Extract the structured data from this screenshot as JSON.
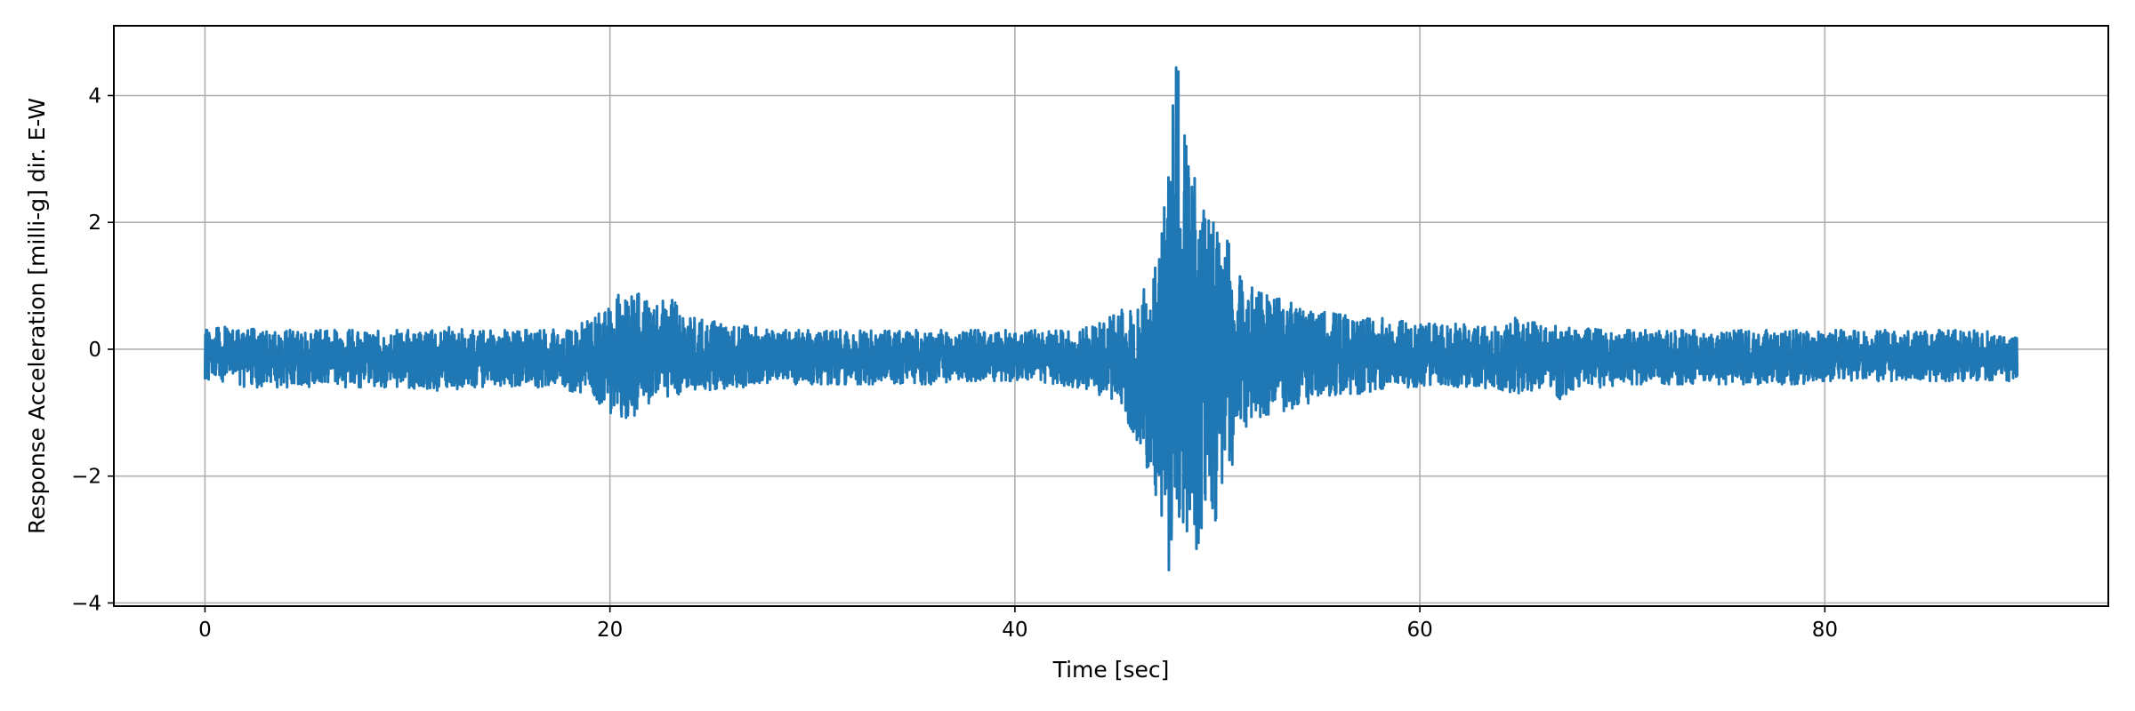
{
  "chart_data": {
    "type": "line",
    "title": "",
    "xlabel": "Time [sec]",
    "ylabel": "Response Acceleration [milli-g] dir. E-W",
    "xlim": [
      -4.5,
      94.0
    ],
    "ylim": [
      -4.05,
      5.1
    ],
    "xticks": [
      0,
      20,
      40,
      60,
      80
    ],
    "yticks": [
      -4,
      -2,
      0,
      2,
      4
    ],
    "xtick_labels": [
      "0",
      "20",
      "40",
      "60",
      "80"
    ],
    "ytick_labels": [
      "−4",
      "−2",
      "0",
      "2",
      "4"
    ],
    "grid": true,
    "legend": "none",
    "series_color": "#1f77b4",
    "series": [
      {
        "x": [
          0,
          1,
          2,
          3,
          4,
          5,
          6,
          7,
          8,
          9,
          10,
          11,
          12,
          13,
          14,
          15,
          16,
          17,
          18,
          19,
          20,
          21,
          22,
          23,
          24,
          25,
          26,
          27,
          28,
          29,
          30,
          31,
          32,
          33,
          34,
          35,
          36,
          37,
          38,
          39,
          40,
          41,
          42,
          43,
          44,
          45,
          46,
          47,
          47.5,
          48,
          48.3,
          48.6,
          49,
          49.5,
          50,
          50.5,
          51,
          51.5,
          52,
          53,
          54,
          55,
          56,
          57,
          58,
          59,
          60,
          61,
          62,
          63,
          64,
          65,
          66,
          67,
          68,
          69,
          70,
          71,
          72,
          73,
          74,
          75,
          76,
          77,
          78,
          79,
          80,
          81,
          82,
          83,
          84,
          85,
          86,
          87,
          88,
          89,
          89.5
        ],
        "upper": [
          0.3,
          0.35,
          0.3,
          0.35,
          0.3,
          0.3,
          0.3,
          0.3,
          0.3,
          0.3,
          0.3,
          0.35,
          0.35,
          0.3,
          0.3,
          0.3,
          0.3,
          0.3,
          0.35,
          0.45,
          0.75,
          1.0,
          0.7,
          0.8,
          0.5,
          0.45,
          0.4,
          0.35,
          0.3,
          0.3,
          0.3,
          0.3,
          0.3,
          0.3,
          0.3,
          0.3,
          0.3,
          0.3,
          0.3,
          0.3,
          0.3,
          0.3,
          0.3,
          0.3,
          0.4,
          0.55,
          0.8,
          1.4,
          2.6,
          4.65,
          3.5,
          3.0,
          2.7,
          2.2,
          2.05,
          1.7,
          1.4,
          1.1,
          0.9,
          0.8,
          0.7,
          0.6,
          0.55,
          0.5,
          0.5,
          0.45,
          0.4,
          0.4,
          0.4,
          0.35,
          0.35,
          0.55,
          0.4,
          0.35,
          0.35,
          0.3,
          0.3,
          0.3,
          0.3,
          0.3,
          0.3,
          0.3,
          0.3,
          0.3,
          0.3,
          0.3,
          0.3,
          0.3,
          0.3,
          0.3,
          0.3,
          0.3,
          0.3,
          0.3,
          0.3,
          0.25,
          0.25
        ],
        "lower": [
          -0.5,
          -0.55,
          -0.6,
          -0.6,
          -0.6,
          -0.6,
          -0.55,
          -0.6,
          -0.6,
          -0.6,
          -0.6,
          -0.65,
          -0.65,
          -0.6,
          -0.6,
          -0.6,
          -0.6,
          -0.6,
          -0.65,
          -0.75,
          -1.0,
          -1.1,
          -0.9,
          -0.8,
          -0.7,
          -0.65,
          -0.6,
          -0.6,
          -0.55,
          -0.55,
          -0.55,
          -0.55,
          -0.55,
          -0.55,
          -0.55,
          -0.55,
          -0.55,
          -0.5,
          -0.5,
          -0.5,
          -0.5,
          -0.5,
          -0.55,
          -0.6,
          -0.7,
          -0.8,
          -1.4,
          -2.6,
          -3.6,
          -3.65,
          -3.0,
          -2.8,
          -3.2,
          -2.5,
          -2.9,
          -2.1,
          -1.7,
          -1.3,
          -1.1,
          -1.0,
          -0.9,
          -0.8,
          -0.7,
          -0.7,
          -0.65,
          -0.6,
          -0.6,
          -0.6,
          -0.6,
          -0.6,
          -0.65,
          -0.7,
          -0.6,
          -0.8,
          -0.6,
          -0.6,
          -0.55,
          -0.55,
          -0.55,
          -0.55,
          -0.55,
          -0.55,
          -0.55,
          -0.55,
          -0.55,
          -0.55,
          -0.5,
          -0.5,
          -0.5,
          -0.5,
          -0.5,
          -0.5,
          -0.5,
          -0.5,
          -0.5,
          -0.5,
          -0.5
        ]
      }
    ]
  }
}
